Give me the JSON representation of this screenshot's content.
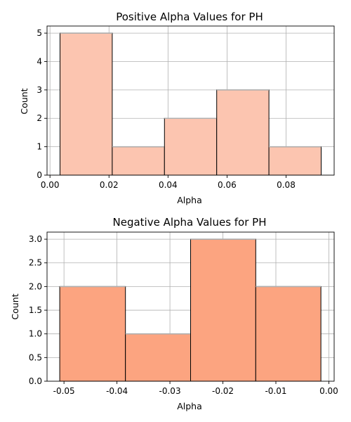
{
  "chart_data": [
    {
      "type": "bar",
      "title": "Positive Alpha Values for PH",
      "xlabel": "Alpha",
      "ylabel": "Count",
      "bins": [
        {
          "start": 0.0034,
          "end": 0.0211,
          "count": 5
        },
        {
          "start": 0.0211,
          "end": 0.0388,
          "count": 1
        },
        {
          "start": 0.0388,
          "end": 0.0565,
          "count": 2
        },
        {
          "start": 0.0565,
          "end": 0.0742,
          "count": 3
        },
        {
          "start": 0.0742,
          "end": 0.0919,
          "count": 1
        }
      ],
      "xlim": [
        -0.001,
        0.0963
      ],
      "ylim": [
        0,
        5.25
      ],
      "xticks": [
        "0.00",
        "0.02",
        "0.04",
        "0.06",
        "0.08"
      ],
      "xtick_values": [
        0.0,
        0.02,
        0.04,
        0.06,
        0.08
      ],
      "yticks": [
        "0",
        "1",
        "2",
        "3",
        "4",
        "5"
      ],
      "ytick_values": [
        0,
        1,
        2,
        3,
        4,
        5
      ],
      "bar_color": "#fcc5b0",
      "edge_color": "#000000",
      "grid": true
    },
    {
      "type": "bar",
      "title": "Negative Alpha Values for PH",
      "xlabel": "Alpha",
      "ylabel": "Count",
      "bins": [
        {
          "start": -0.0508,
          "end": -0.0384,
          "count": 2
        },
        {
          "start": -0.0384,
          "end": -0.0261,
          "count": 1
        },
        {
          "start": -0.0261,
          "end": -0.0138,
          "count": 3
        },
        {
          "start": -0.0138,
          "end": -0.0015,
          "count": 2
        }
      ],
      "xlim": [
        -0.0532,
        0.001
      ],
      "ylim": [
        0,
        3.15
      ],
      "xticks": [
        "-0.05",
        "-0.04",
        "-0.03",
        "-0.02",
        "-0.01",
        "0.00"
      ],
      "xtick_values": [
        -0.05,
        -0.04,
        -0.03,
        -0.02,
        -0.01,
        0.0
      ],
      "yticks": [
        "0.0",
        "0.5",
        "1.0",
        "1.5",
        "2.0",
        "2.5",
        "3.0"
      ],
      "ytick_values": [
        0,
        0.5,
        1.0,
        1.5,
        2.0,
        2.5,
        3.0
      ],
      "bar_color": "#fca480",
      "edge_color": "#000000",
      "grid": true
    }
  ]
}
